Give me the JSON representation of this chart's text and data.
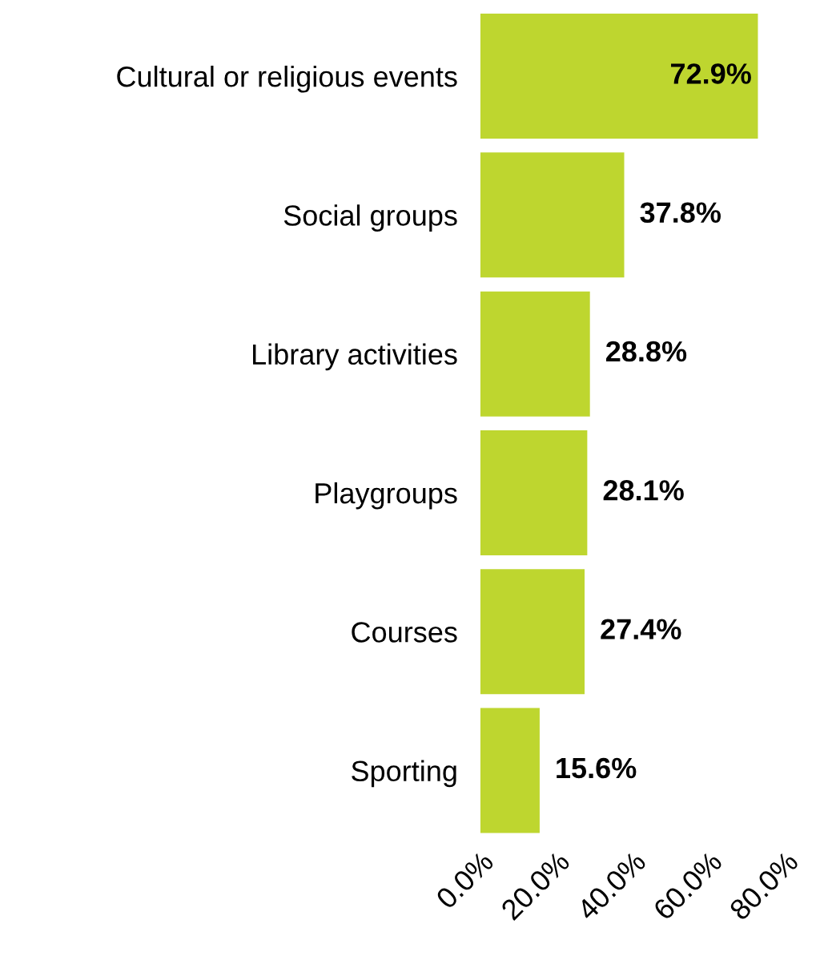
{
  "chart_data": {
    "type": "bar",
    "orientation": "horizontal",
    "categories": [
      "Cultural or religious events",
      "Social groups",
      "Library activities",
      "Playgroups",
      "Courses",
      "Sporting"
    ],
    "values": [
      72.9,
      37.8,
      28.8,
      28.1,
      27.4,
      15.6
    ],
    "value_labels": [
      "72.9%",
      "37.8%",
      "28.8%",
      "28.1%",
      "27.4%",
      "15.6%"
    ],
    "color": "#bed62f",
    "xlim": [
      0,
      80
    ],
    "xticks": [
      {
        "value": 0,
        "label": "0.0%"
      },
      {
        "value": 20,
        "label": "20.0%"
      },
      {
        "value": 40,
        "label": "40.0%"
      },
      {
        "value": 60,
        "label": "60.0%"
      },
      {
        "value": 80,
        "label": "80.0%"
      }
    ],
    "grid": false,
    "legend": false
  }
}
